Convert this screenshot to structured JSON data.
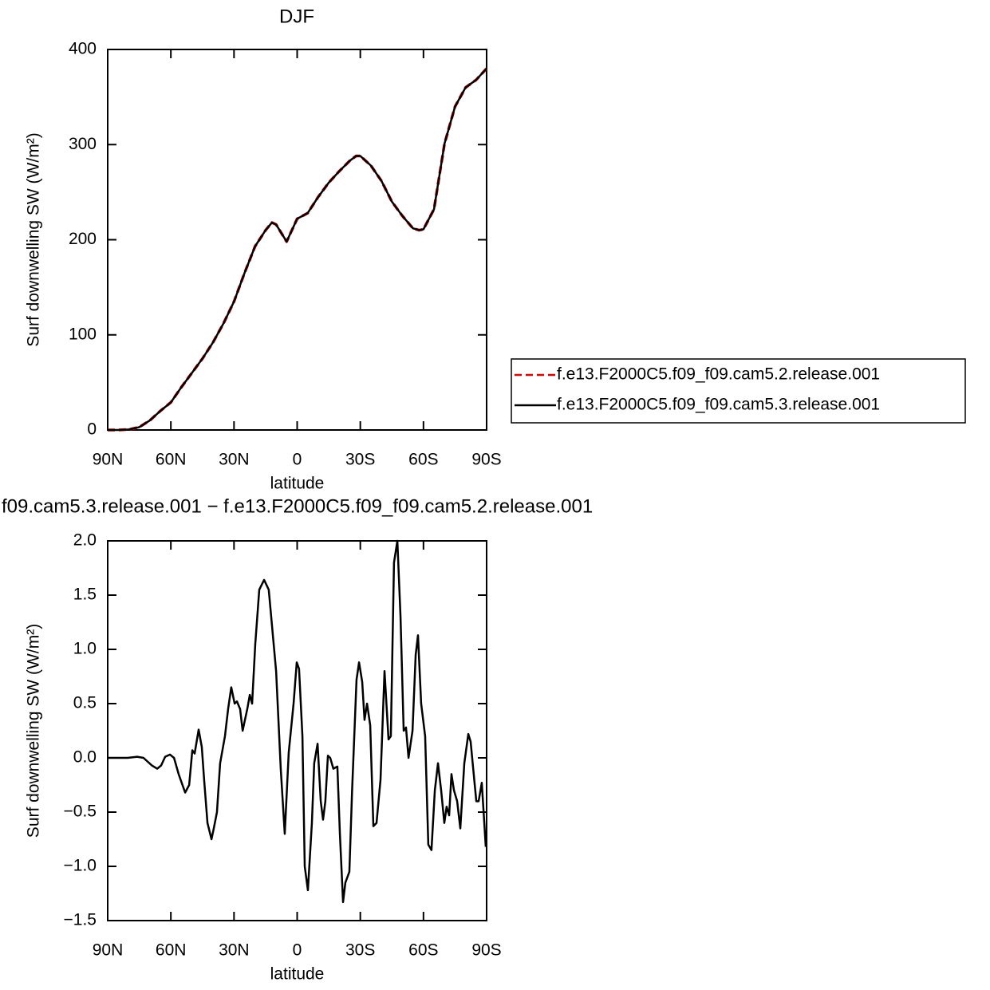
{
  "chart_data": [
    {
      "type": "line",
      "title": "DJF",
      "xlabel": "latitude",
      "ylabel": "Surf downwelling SW (W/m²)",
      "x": [
        90,
        85,
        80,
        75,
        70,
        65,
        60,
        55,
        50,
        45,
        40,
        35,
        30,
        25,
        20,
        15,
        12,
        10,
        5,
        0,
        -5,
        -10,
        -15,
        -20,
        -25,
        -28,
        -30,
        -35,
        -40,
        -45,
        -50,
        -55,
        -58,
        -60,
        -65,
        -70,
        -75,
        -80,
        -85,
        -90
      ],
      "series": [
        {
          "name": "f.e13.F2000C5.f09_f09.cam5.2.release.001",
          "color": "#e00000",
          "style": "dashed",
          "values": [
            0,
            0,
            0.5,
            3,
            10,
            20,
            29,
            45,
            60,
            75,
            92,
            112,
            135,
            165,
            193,
            210,
            218,
            216,
            198,
            222,
            228,
            245,
            260,
            272,
            283,
            288,
            288,
            278,
            262,
            240,
            225,
            212,
            210,
            211,
            232,
            301,
            340,
            360,
            368,
            380
          ]
        },
        {
          "name": "f.e13.F2000C5.f09_f09.cam5.3.release.001",
          "color": "#000000",
          "style": "solid",
          "values": [
            0,
            0,
            0.5,
            3,
            10,
            20,
            29,
            45,
            60,
            75,
            92,
            112,
            135,
            165,
            193,
            210,
            218,
            216,
            198,
            222,
            228,
            245,
            260,
            272,
            283,
            288,
            288,
            278,
            262,
            240,
            225,
            212,
            210,
            211,
            232,
            301,
            340,
            360,
            368,
            380
          ]
        }
      ],
      "xlim": [
        90,
        -90
      ],
      "xticks": [
        {
          "value": 90,
          "label": "90N"
        },
        {
          "value": 60,
          "label": "60N"
        },
        {
          "value": 30,
          "label": "30N"
        },
        0,
        {
          "value": -30,
          "label": "30S"
        },
        {
          "value": -60,
          "label": "60S"
        },
        {
          "value": -90,
          "label": "90S"
        }
      ],
      "ylim": [
        0,
        400
      ],
      "yticks": [
        0,
        100,
        200,
        300,
        400
      ],
      "legend": "right"
    },
    {
      "type": "line",
      "title": "f09.cam5.3.release.001 − f.e13.F2000C5.f09_f09.cam5.2.release.001",
      "xlabel": "latitude",
      "ylabel": "Surf downwelling SW (W/m²)",
      "x": [
        90,
        80.5,
        76,
        73,
        69,
        66.5,
        64.6,
        62.7,
        60.4,
        58.5,
        56.3,
        53.2,
        51.3,
        49.8,
        48.7,
        46.8,
        45.3,
        44.2,
        42.6,
        40.7,
        39.6,
        38.1,
        36.6,
        34.3,
        32.8,
        31.3,
        29.7,
        28.6,
        27.1,
        25.9,
        23.7,
        22.5,
        21.4,
        19.9,
        18,
        15.7,
        13.5,
        10,
        7.8,
        5.9,
        4,
        1.7,
        0.2,
        -0.9,
        -2.5,
        -3.6,
        -5.1,
        -7,
        -8.1,
        -9.7,
        -11.2,
        -12.3,
        -13.4,
        -14.6,
        -15.7,
        -17.2,
        -19.1,
        -20.3,
        -21.8,
        -22.9,
        -24.8,
        -26.1,
        -28.2,
        -29.4,
        -30.9,
        -32,
        -33.2,
        -34.7,
        -36.2,
        -37.7,
        -39.6,
        -41.5,
        -43.4,
        -44.5,
        -46,
        -47.6,
        -49.1,
        -50.6,
        -51.7,
        -52.9,
        -54.8,
        -56.3,
        -57.4,
        -58.9,
        -60.8,
        -62.3,
        -63.8,
        -65.4,
        -66.9,
        -68.4,
        -69.9,
        -71,
        -72.2,
        -73.3,
        -74.5,
        -76,
        -77.5,
        -79.4,
        -81.3,
        -82.4,
        -85.1,
        -86.2,
        -87.7,
        -89.6
      ],
      "series": [
        {
          "color": "#000000",
          "style": "solid",
          "values": [
            0,
            0,
            0.01,
            0,
            -0.07,
            -0.1,
            -0.07,
            0.01,
            0.03,
            0,
            -0.15,
            -0.32,
            -0.25,
            0.07,
            0.04,
            0.26,
            0.1,
            -0.2,
            -0.6,
            -0.75,
            -0.65,
            -0.5,
            -0.05,
            0.2,
            0.45,
            0.65,
            0.5,
            0.52,
            0.45,
            0.25,
            0.45,
            0.58,
            0.5,
            1.05,
            1.55,
            1.64,
            1.55,
            0.8,
            -0.1,
            -0.7,
            0.05,
            0.5,
            0.88,
            0.82,
            0.2,
            -1,
            -1.22,
            -0.6,
            -0.05,
            0.13,
            -0.4,
            -0.57,
            -0.4,
            0.02,
            0,
            -0.1,
            -0.08,
            -0.7,
            -1.33,
            -1.15,
            -1.05,
            -0.3,
            0.72,
            0.88,
            0.7,
            0.35,
            0.5,
            0.3,
            -0.63,
            -0.6,
            -0.2,
            0.8,
            0.17,
            0.2,
            1.8,
            2,
            1.3,
            0.25,
            0.28,
            0,
            0.25,
            0.95,
            1.13,
            0.5,
            0.2,
            -0.8,
            -0.85,
            -0.3,
            -0.05,
            -0.3,
            -0.6,
            -0.45,
            -0.53,
            -0.15,
            -0.3,
            -0.4,
            -0.65,
            -0.05,
            0.22,
            0.15,
            -0.4,
            -0.4,
            -0.23,
            -0.82
          ]
        }
      ],
      "xlim": [
        90,
        -90
      ],
      "xticks": [
        {
          "value": 90,
          "label": "90N"
        },
        {
          "value": 60,
          "label": "60N"
        },
        {
          "value": 30,
          "label": "30N"
        },
        0,
        {
          "value": -30,
          "label": "30S"
        },
        {
          "value": -60,
          "label": "60S"
        },
        {
          "value": -90,
          "label": "90S"
        }
      ],
      "ylim": [
        -1.5,
        2
      ],
      "yticks": [
        {
          "value": -1.5,
          "label": "−1.5"
        },
        {
          "value": -1,
          "label": "−1.0"
        },
        {
          "value": -0.5,
          "label": "−0.5"
        },
        {
          "value": 0,
          "label": "0.0"
        },
        0.5,
        {
          "value": 1,
          "label": "1.0"
        },
        1.5,
        {
          "value": 2,
          "label": "2.0"
        }
      ]
    }
  ]
}
